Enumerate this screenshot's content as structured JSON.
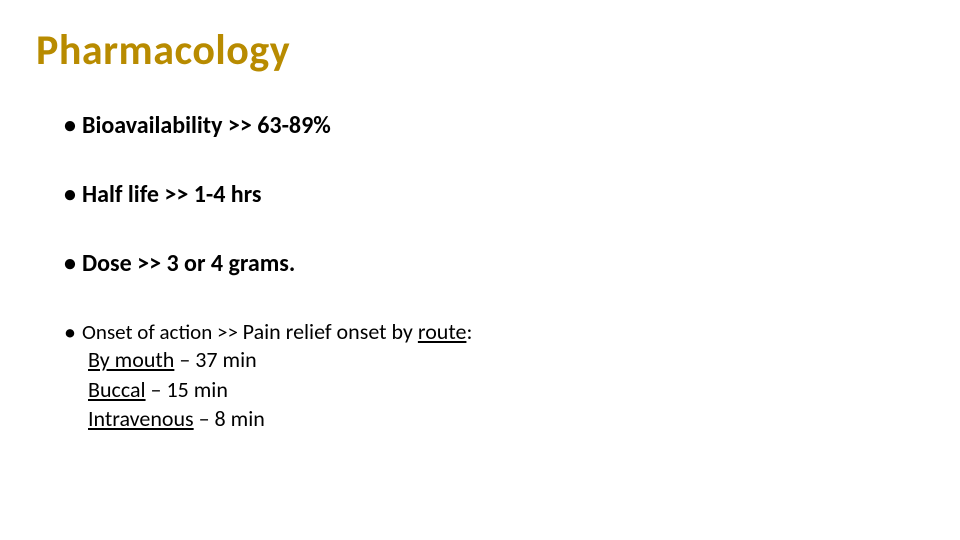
{
  "colors": {
    "title": "#b88b00",
    "text": "#000000",
    "background": "#ffffff"
  },
  "typography": {
    "title_fontsize_pt": 32,
    "bullet_bold_fontsize_pt": 18,
    "bullet_normal_fontsize_pt": 16,
    "sub_fontsize_pt": 16,
    "family": "Calibri"
  },
  "title": "Pharmacology",
  "bullets": {
    "bioavailability": "Bioavailability >> 63-89%",
    "half_life": "Half life >> 1-4 hrs",
    "dose": "Dose >> 3 or 4 grams.",
    "onset": {
      "label": "Onset of action >> ",
      "pain_prefix": "Pain relief onset by ",
      "route_word": "route",
      "colon": ":",
      "lines": {
        "mouth_link": "By mouth",
        "mouth_rest": " – 37 min",
        "buccal_link": "Buccal",
        "buccal_rest": " – 15 min",
        "iv_link": "Intravenous",
        "iv_rest": " – 8 min"
      }
    }
  }
}
